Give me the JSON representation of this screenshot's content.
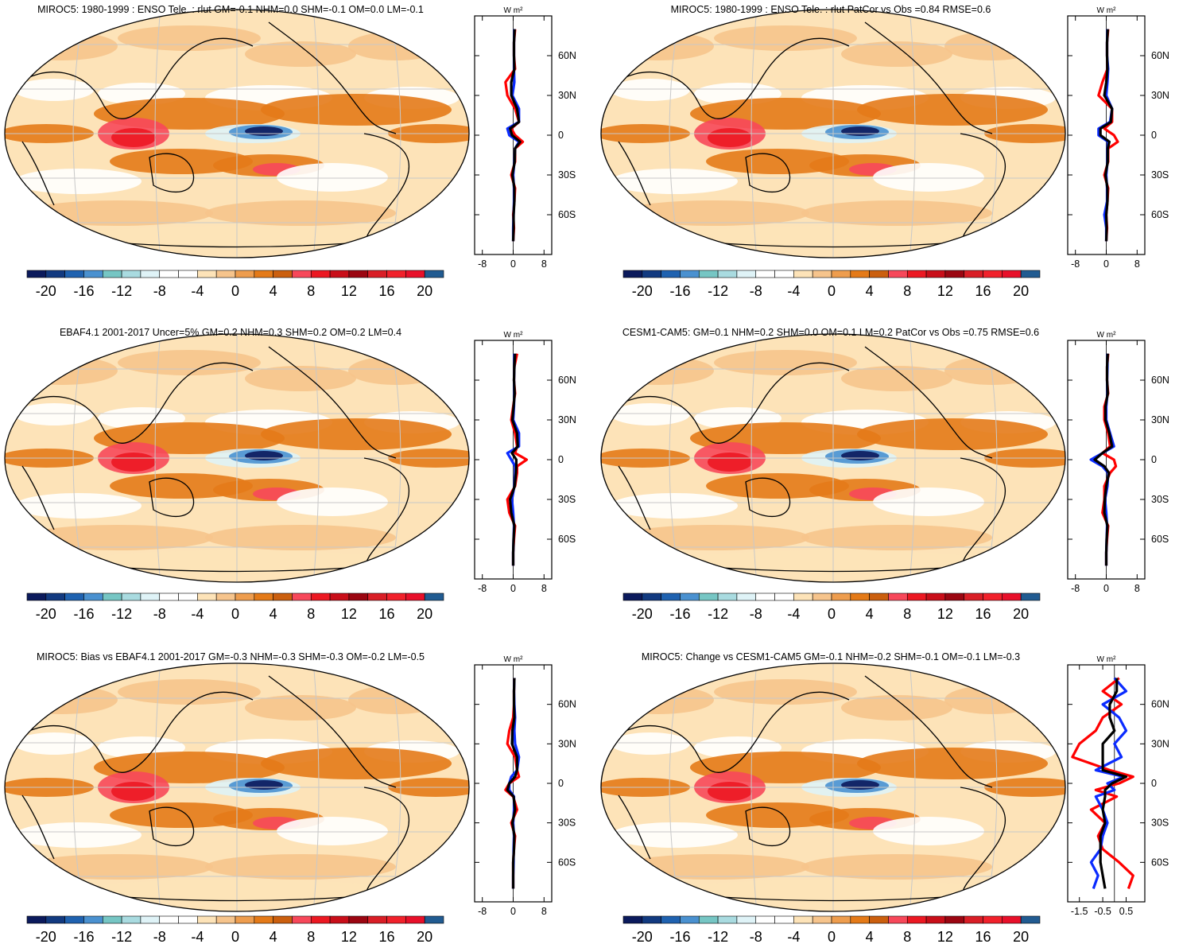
{
  "colorbar": {
    "colors": [
      "#0b1a5c",
      "#123a80",
      "#1f62b0",
      "#4a91d0",
      "#76c6c4",
      "#a9dbe0",
      "#dff3f7",
      "#ffffff",
      "#ffffff",
      "#fde3b8",
      "#f6c48c",
      "#ee9d4e",
      "#e47a18",
      "#cb5f0e",
      "#f7485a",
      "#ec1822",
      "#c90e19",
      "#9b0611",
      "#d91e26",
      "#f1212b",
      "#e8102a",
      "#215b91"
    ],
    "labels": [
      "-20",
      "-16",
      "-12",
      "-8",
      "-4",
      "0",
      "4",
      "8",
      "12",
      "16",
      "20"
    ]
  },
  "line_colors": {
    "model": "#ff0000",
    "obs": "#0a2bff",
    "ref": "#000000"
  },
  "zonal_unit": "W m²",
  "lat_labels": [
    "60N",
    "30N",
    "0",
    "30S",
    "60S"
  ],
  "panels": [
    {
      "title": "MIROC5: 1980-1999 : ENSO Tele. : rlut GM=-0.1 NHM=0.0 SHM=-0.1 OM=0.0 LM=-0.1",
      "zonal_ticks": [
        "-8",
        "0",
        "8"
      ]
    },
    {
      "title": "MIROC5: 1980-1999 : ENSO Tele. : rlut PatCor vs Obs =0.84 RMSE=0.6",
      "zonal_ticks": [
        "-8",
        "0",
        "8"
      ]
    },
    {
      "title": "EBAF4.1 2001-2017 Uncer=5% GM=0.2 NHM=0.3 SHM=0.2 OM=0.2 LM=0.4",
      "zonal_ticks": [
        "-8",
        "0",
        "8"
      ]
    },
    {
      "title": "CESM1-CAM5: GM=0.1 NHM=0.2 SHM=0.0 OM=0.1 LM=0.2 PatCor vs Obs =0.75 RMSE=0.6",
      "zonal_ticks": [
        "-8",
        "0",
        "8"
      ]
    },
    {
      "title": "MIROC5: Bias vs EBAF4.1 2001-2017 GM=-0.3 NHM=-0.3 SHM=-0.3 OM=-0.2 LM=-0.5",
      "zonal_ticks": [
        "-8",
        "0",
        "8"
      ]
    },
    {
      "title": "MIROC5: Change vs CESM1-CAM5 GM=-0.1 NHM=-0.2 SHM=-0.1 OM=-0.1 LM=-0.3",
      "zonal_ticks": [
        "-1.5",
        "-0.5",
        "0.5"
      ]
    }
  ],
  "chart_data": [
    {
      "type": "heatmap",
      "title": "MIROC5: 1980-1999 : ENSO Tele. : rlut GM=-0.1 NHM=0.0 SHM=-0.1 OM=0.0 LM=-0.1",
      "projection": "Robinson, Pacific-centered",
      "colorbar_range": [
        -20,
        20
      ],
      "zonal_mean": {
        "lat": [
          80,
          70,
          60,
          50,
          40,
          30,
          20,
          10,
          5,
          0,
          -5,
          -10,
          -20,
          -30,
          -40,
          -50,
          -60,
          -70,
          -80
        ],
        "xlim": [
          -10,
          10
        ],
        "series": [
          {
            "color": "#ff0000",
            "values": [
              0.5,
              0.2,
              0.2,
              0.5,
              -2,
              -1.5,
              0.5,
              1.5,
              -0.5,
              0.5,
              2.5,
              0.5,
              0.5,
              -0.5,
              0.5,
              0.3,
              0,
              0.2,
              0
            ]
          },
          {
            "color": "#0a2bff",
            "values": [
              0.3,
              0.2,
              0.2,
              0.2,
              0.3,
              -0.2,
              1.5,
              1.5,
              -1.5,
              -1,
              1.5,
              0.5,
              0.3,
              0,
              0.2,
              0.2,
              0.1,
              0,
              0
            ]
          },
          {
            "color": "#000000",
            "values": [
              0.4,
              0.2,
              0.2,
              0.3,
              -0.5,
              -0.5,
              1,
              1.5,
              -0.8,
              -0.3,
              1.8,
              0.5,
              0.4,
              -0.2,
              0.3,
              0.3,
              0.1,
              0.1,
              0
            ]
          }
        ]
      }
    },
    {
      "type": "heatmap",
      "title": "MIROC5: 1980-1999 : ENSO Tele. : rlut PatCor vs Obs =0.84 RMSE=0.6",
      "projection": "Robinson, Pacific-centered",
      "colorbar_range": [
        -20,
        20
      ],
      "zonal_mean": {
        "lat": [
          80,
          70,
          60,
          50,
          40,
          30,
          20,
          10,
          5,
          0,
          -5,
          -10,
          -20,
          -30,
          -40,
          -50,
          -60,
          -70,
          -80
        ],
        "xlim": [
          -10,
          10
        ],
        "series": [
          {
            "color": "#ff0000",
            "values": [
              0.5,
              0.2,
              0.2,
              0.3,
              -1,
              -2,
              1.5,
              1.5,
              -0.5,
              2,
              3,
              0.5,
              0.5,
              -0.5,
              0.5,
              0.3,
              0,
              0.2,
              0
            ]
          },
          {
            "color": "#0a2bff",
            "values": [
              0.3,
              0.2,
              0.2,
              0.5,
              0.3,
              0,
              1.5,
              1,
              -2,
              -2,
              0.5,
              0.3,
              0.3,
              0,
              0.2,
              0.2,
              -0.5,
              0,
              0
            ]
          },
          {
            "color": "#000000",
            "values": [
              0.4,
              0.2,
              0.2,
              0.3,
              0,
              -0.5,
              1.5,
              1.2,
              -1.5,
              -1.5,
              0.8,
              0.4,
              0.4,
              -0.2,
              0.3,
              0.3,
              0,
              0.1,
              0
            ]
          }
        ]
      }
    },
    {
      "type": "heatmap",
      "title": "EBAF4.1 2001-2017 Uncer=5% GM=0.2 NHM=0.3 SHM=0.2 OM=0.2 LM=0.4",
      "projection": "Robinson, Pacific-centered",
      "colorbar_range": [
        -20,
        20
      ],
      "zonal_mean": {
        "lat": [
          80,
          70,
          60,
          50,
          40,
          30,
          20,
          10,
          5,
          0,
          -5,
          -10,
          -20,
          -30,
          -40,
          -50,
          -60,
          -70,
          -80
        ],
        "xlim": [
          -10,
          10
        ],
        "series": [
          {
            "color": "#ff0000",
            "values": [
              1,
              0.3,
              0.2,
              0.5,
              0,
              -0.5,
              0.5,
              1,
              0.5,
              3.5,
              1,
              1,
              0.5,
              -1.5,
              -1,
              0.5,
              0.2,
              0,
              0
            ]
          },
          {
            "color": "#0a2bff",
            "values": [
              0.3,
              0.3,
              0.2,
              0.3,
              0.2,
              0,
              1.5,
              1.5,
              -1.5,
              -0.5,
              0.5,
              0.5,
              0.3,
              -0.3,
              0,
              0.2,
              0.1,
              0,
              0
            ]
          },
          {
            "color": "#000000",
            "values": [
              0.5,
              0.3,
              0.2,
              0.4,
              0.1,
              -0.2,
              1,
              1.2,
              -0.3,
              0.8,
              0.8,
              0.7,
              0.4,
              -0.8,
              -0.5,
              0.3,
              0.1,
              0,
              0
            ]
          }
        ]
      }
    },
    {
      "type": "heatmap",
      "title": "CESM1-CAM5: GM=0.1 NHM=0.2 SHM=0.0 OM=0.1 LM=0.2 PatCor vs Obs =0.75 RMSE=0.6",
      "projection": "Robinson, Pacific-centered",
      "colorbar_range": [
        -20,
        20
      ],
      "zonal_mean": {
        "lat": [
          80,
          70,
          60,
          50,
          40,
          30,
          20,
          10,
          5,
          0,
          -5,
          -10,
          -20,
          -30,
          -40,
          -50,
          -60,
          -70,
          -80
        ],
        "xlim": [
          -10,
          10
        ],
        "series": [
          {
            "color": "#ff0000",
            "values": [
              0.5,
              0.2,
              0.2,
              0.5,
              -0.5,
              -0.5,
              0.5,
              1,
              -1,
              2,
              2.5,
              1,
              -0.5,
              -0.5,
              -1,
              0.5,
              0.2,
              0,
              0
            ]
          },
          {
            "color": "#0a2bff",
            "values": [
              0.3,
              0.3,
              0.2,
              0.3,
              0,
              0,
              1,
              2,
              -1,
              -4,
              -1,
              0.5,
              0.3,
              -0.3,
              0,
              0.2,
              0.1,
              0,
              0
            ]
          },
          {
            "color": "#000000",
            "values": [
              0.4,
              0.2,
              0.2,
              0.4,
              -0.2,
              -0.2,
              0.8,
              1.5,
              -1,
              -3,
              -0.5,
              0.7,
              0,
              -0.4,
              -0.5,
              0.3,
              0.1,
              0,
              0
            ]
          }
        ]
      }
    },
    {
      "type": "heatmap",
      "title": "MIROC5: Bias vs EBAF4.1 2001-2017 GM=-0.3 NHM=-0.3 SHM=-0.3 OM=-0.2 LM=-0.5",
      "projection": "Robinson, Pacific-centered",
      "colorbar_range": [
        -20,
        20
      ],
      "zonal_mean": {
        "lat": [
          80,
          70,
          60,
          50,
          40,
          30,
          20,
          10,
          5,
          0,
          -5,
          -10,
          -20,
          -30,
          -40,
          -50,
          -60,
          -70,
          -80
        ],
        "xlim": [
          -10,
          10
        ],
        "series": [
          {
            "color": "#ff0000",
            "values": [
              0.3,
              0.2,
              0.2,
              0,
              -1,
              -1.5,
              0.5,
              1,
              1.5,
              -1,
              -2,
              0,
              1,
              -0.5,
              0.5,
              0.2,
              0,
              0,
              0
            ]
          },
          {
            "color": "#0a2bff",
            "values": [
              0.3,
              0.2,
              0.3,
              0.5,
              0.3,
              0.5,
              1.5,
              1,
              -0.5,
              -1,
              -1,
              0.2,
              0.2,
              0,
              0.2,
              0.1,
              0.1,
              0,
              0
            ]
          },
          {
            "color": "#000000",
            "values": [
              0.3,
              0.2,
              0.2,
              0.3,
              -0.2,
              -0.3,
              1,
              1,
              0.5,
              -1,
              -1.5,
              0.1,
              0.5,
              -0.2,
              0.3,
              0.2,
              0,
              0,
              0
            ]
          }
        ]
      }
    },
    {
      "type": "heatmap",
      "title": "MIROC5: Change vs CESM1-CAM5 GM=-0.1 NHM=-0.2 SHM=-0.1 OM=-0.1 LM=-0.3",
      "projection": "Robinson, Pacific-centered",
      "colorbar_range": [
        -20,
        20
      ],
      "zonal_mean": {
        "lat": [
          80,
          70,
          60,
          50,
          40,
          30,
          20,
          10,
          5,
          0,
          -5,
          -10,
          -20,
          -30,
          -40,
          -50,
          -60,
          -70,
          -80
        ],
        "xlim": [
          -2,
          1.3
        ],
        "series": [
          {
            "color": "#ff0000",
            "values": [
              0.2,
              -0.5,
              0.3,
              -0.5,
              -0.8,
              -1.5,
              -1.8,
              -0.2,
              0.8,
              0.2,
              -0.8,
              0.1,
              -1,
              -0.4,
              -0.7,
              -0.5,
              0.2,
              0.8,
              0.6
            ]
          },
          {
            "color": "#0a2bff",
            "values": [
              0,
              0.5,
              -0.5,
              0.2,
              0.5,
              0,
              0.3,
              -0.8,
              0.4,
              -0.3,
              0,
              -0.8,
              -0.5,
              -0.3,
              -0.5,
              -0.6,
              -1,
              -0.7,
              -0.9
            ]
          },
          {
            "color": "#000000",
            "values": [
              0.1,
              0.1,
              -0.2,
              -0.2,
              0,
              -0.5,
              -0.5,
              -0.5,
              0.5,
              -0.1,
              -0.4,
              -0.4,
              -0.5,
              -0.4,
              -0.6,
              -0.6,
              -0.6,
              -0.5,
              -0.4
            ]
          }
        ]
      }
    }
  ]
}
